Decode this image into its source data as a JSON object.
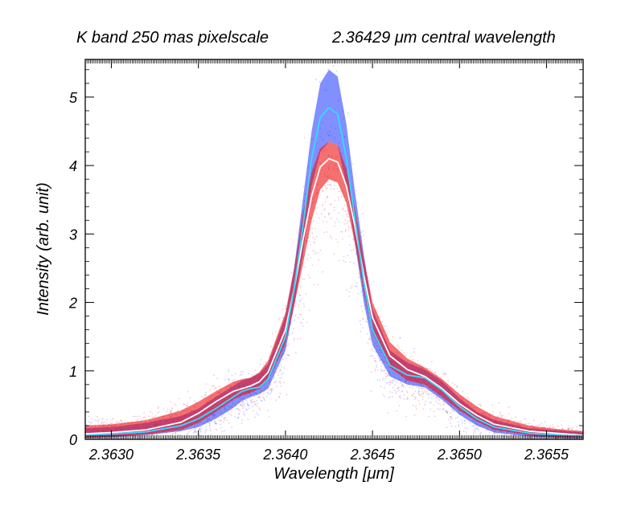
{
  "chart_data": {
    "type": "line",
    "title_left": "K band 250 mas pixelscale",
    "title_right": "2.36429 μm central wavelength",
    "xlabel": "Wavelength [μm]",
    "ylabel": "Intensity (arb. unit)",
    "xlim": [
      2.36285,
      2.36571
    ],
    "ylim": [
      0,
      5.55
    ],
    "x_ticks": [
      2.363,
      2.3635,
      2.364,
      2.3645,
      2.365,
      2.3655
    ],
    "x_tick_labels": [
      "2.3630",
      "2.3635",
      "2.3640",
      "2.3645",
      "2.3650",
      "2.3655"
    ],
    "y_ticks": [
      0,
      1,
      2,
      3,
      4,
      5
    ],
    "y_tick_labels": [
      "0",
      "1",
      "2",
      "3",
      "4",
      "5"
    ],
    "series": [
      {
        "name": "mean profile (white)",
        "color": "#ffffff",
        "x": [
          2.36285,
          2.363,
          2.3632,
          2.3634,
          2.3635,
          2.3636,
          2.3637,
          2.36375,
          2.3638,
          2.36385,
          2.3639,
          2.364,
          2.36405,
          2.3641,
          2.36415,
          2.3642,
          2.36425,
          2.3643,
          2.36435,
          2.3644,
          2.36445,
          2.3645,
          2.3646,
          2.3647,
          2.3648,
          2.3649,
          2.365,
          2.3651,
          2.3652,
          2.3654,
          2.3656,
          2.36571
        ],
        "y": [
          0.08,
          0.1,
          0.14,
          0.25,
          0.38,
          0.55,
          0.7,
          0.74,
          0.78,
          0.84,
          0.98,
          1.6,
          2.2,
          2.9,
          3.55,
          3.98,
          4.1,
          4.05,
          3.7,
          3.1,
          2.4,
          1.78,
          1.22,
          1.02,
          0.92,
          0.74,
          0.52,
          0.35,
          0.22,
          0.12,
          0.08,
          0.06
        ]
      },
      {
        "name": "mean profile (cyan)",
        "color": "#33ddff",
        "x": [
          2.36285,
          2.363,
          2.3632,
          2.3634,
          2.3635,
          2.3636,
          2.3637,
          2.36375,
          2.3638,
          2.36385,
          2.3639,
          2.364,
          2.36405,
          2.3641,
          2.36415,
          2.3642,
          2.36425,
          2.3643,
          2.36435,
          2.3644,
          2.36445,
          2.3645,
          2.3646,
          2.3647,
          2.3648,
          2.3649,
          2.365,
          2.3651,
          2.3652,
          2.3654,
          2.3656,
          2.36571
        ],
        "y": [
          0.06,
          0.08,
          0.11,
          0.2,
          0.3,
          0.45,
          0.62,
          0.7,
          0.74,
          0.76,
          0.88,
          1.5,
          2.2,
          3.1,
          4.1,
          4.7,
          4.85,
          4.75,
          4.1,
          3.2,
          2.3,
          1.6,
          1.08,
          0.94,
          0.9,
          0.72,
          0.48,
          0.3,
          0.18,
          0.09,
          0.06,
          0.05
        ]
      }
    ],
    "scatter_envelopes": [
      {
        "name": "blue scatter",
        "color": "#1a33ff",
        "x": [
          2.36285,
          2.363,
          2.3632,
          2.3634,
          2.3635,
          2.3636,
          2.3637,
          2.36375,
          2.3638,
          2.36385,
          2.3639,
          2.364,
          2.36405,
          2.3641,
          2.36415,
          2.3642,
          2.36425,
          2.3643,
          2.36435,
          2.3644,
          2.36445,
          2.3645,
          2.3646,
          2.3647,
          2.3648,
          2.3649,
          2.365,
          2.3651,
          2.3652,
          2.3654,
          2.3656,
          2.36571
        ],
        "upper": [
          0.16,
          0.18,
          0.24,
          0.34,
          0.45,
          0.62,
          0.78,
          0.86,
          0.9,
          0.96,
          1.1,
          1.8,
          2.5,
          3.5,
          4.5,
          5.2,
          5.4,
          5.3,
          4.6,
          3.6,
          2.7,
          1.9,
          1.3,
          1.12,
          1.02,
          0.85,
          0.6,
          0.4,
          0.28,
          0.16,
          0.12,
          0.1
        ],
        "lower": [
          0.02,
          0.03,
          0.06,
          0.12,
          0.18,
          0.3,
          0.46,
          0.56,
          0.62,
          0.66,
          0.74,
          1.3,
          1.95,
          2.7,
          3.7,
          4.2,
          4.35,
          4.3,
          3.7,
          2.85,
          2.0,
          1.38,
          0.92,
          0.8,
          0.76,
          0.58,
          0.36,
          0.2,
          0.1,
          0.04,
          0.02,
          0.02
        ]
      },
      {
        "name": "red scatter",
        "color": "#ee1111",
        "x": [
          2.36285,
          2.363,
          2.3632,
          2.3634,
          2.3635,
          2.3636,
          2.3637,
          2.36375,
          2.3638,
          2.36385,
          2.3639,
          2.364,
          2.36405,
          2.3641,
          2.36415,
          2.3642,
          2.36425,
          2.3643,
          2.36435,
          2.3644,
          2.36445,
          2.3645,
          2.3646,
          2.3647,
          2.3648,
          2.3649,
          2.365,
          2.3651,
          2.3652,
          2.3654,
          2.3656,
          2.36571
        ],
        "upper": [
          0.2,
          0.22,
          0.28,
          0.42,
          0.55,
          0.7,
          0.84,
          0.88,
          0.9,
          0.98,
          1.15,
          1.85,
          2.5,
          3.3,
          3.9,
          4.25,
          4.35,
          4.3,
          3.95,
          3.35,
          2.65,
          2.0,
          1.42,
          1.18,
          1.05,
          0.88,
          0.66,
          0.48,
          0.34,
          0.2,
          0.14,
          0.12
        ],
        "lower": [
          0.02,
          0.04,
          0.07,
          0.14,
          0.24,
          0.4,
          0.58,
          0.64,
          0.68,
          0.74,
          0.86,
          1.4,
          1.95,
          2.55,
          3.2,
          3.65,
          3.8,
          3.75,
          3.45,
          2.85,
          2.15,
          1.56,
          1.05,
          0.86,
          0.8,
          0.62,
          0.42,
          0.26,
          0.14,
          0.06,
          0.03,
          0.02
        ]
      }
    ]
  }
}
